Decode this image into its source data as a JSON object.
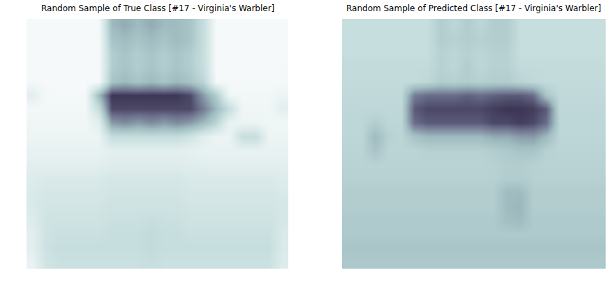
{
  "chart_data": [
    {
      "type": "heatmap",
      "title": "Random Sample of True Class [#17 - Virginia's Warbler]",
      "tick_labels": false,
      "zlim": [
        0,
        1
      ],
      "z": [
        [
          0.05,
          0.05,
          0.05,
          0.05,
          0.05,
          0.05,
          0.5,
          0.55,
          0.5,
          0.55,
          0.5,
          0.5,
          0.45,
          0.3,
          0.05,
          0.05,
          0.05,
          0.05,
          0.05,
          0.05
        ],
        [
          0.05,
          0.05,
          0.05,
          0.05,
          0.05,
          0.05,
          0.45,
          0.5,
          0.45,
          0.5,
          0.45,
          0.5,
          0.45,
          0.3,
          0.05,
          0.05,
          0.05,
          0.05,
          0.05,
          0.05
        ],
        [
          0.05,
          0.05,
          0.05,
          0.05,
          0.05,
          0.05,
          0.4,
          0.45,
          0.4,
          0.45,
          0.4,
          0.45,
          0.4,
          0.3,
          0.05,
          0.05,
          0.05,
          0.05,
          0.05,
          0.05
        ],
        [
          0.05,
          0.05,
          0.05,
          0.05,
          0.05,
          0.05,
          0.4,
          0.45,
          0.4,
          0.45,
          0.4,
          0.45,
          0.4,
          0.3,
          0.05,
          0.05,
          0.05,
          0.05,
          0.05,
          0.06
        ],
        [
          0.06,
          0.06,
          0.05,
          0.05,
          0.05,
          0.05,
          0.45,
          0.5,
          0.45,
          0.5,
          0.45,
          0.5,
          0.45,
          0.35,
          0.06,
          0.06,
          0.06,
          0.06,
          0.06,
          0.06
        ],
        [
          0.15,
          0.06,
          0.06,
          0.06,
          0.06,
          0.5,
          0.9,
          0.9,
          0.9,
          0.9,
          0.9,
          0.9,
          0.85,
          0.6,
          0.4,
          0.08,
          0.07,
          0.07,
          0.07,
          0.1
        ],
        [
          0.07,
          0.07,
          0.07,
          0.07,
          0.07,
          0.3,
          0.85,
          0.85,
          0.85,
          0.85,
          0.85,
          0.85,
          0.85,
          0.7,
          0.5,
          0.3,
          0.08,
          0.08,
          0.08,
          0.15
        ],
        [
          0.08,
          0.08,
          0.08,
          0.08,
          0.08,
          0.15,
          0.6,
          0.65,
          0.6,
          0.65,
          0.6,
          0.65,
          0.6,
          0.5,
          0.35,
          0.12,
          0.1,
          0.1,
          0.08,
          0.08
        ],
        [
          0.1,
          0.1,
          0.1,
          0.1,
          0.1,
          0.1,
          0.3,
          0.3,
          0.3,
          0.3,
          0.3,
          0.3,
          0.25,
          0.15,
          0.1,
          0.1,
          0.3,
          0.3,
          0.1,
          0.1
        ],
        [
          0.12,
          0.12,
          0.12,
          0.12,
          0.12,
          0.12,
          0.15,
          0.15,
          0.15,
          0.15,
          0.15,
          0.15,
          0.14,
          0.12,
          0.12,
          0.12,
          0.12,
          0.12,
          0.12,
          0.12
        ],
        [
          0.15,
          0.15,
          0.15,
          0.15,
          0.15,
          0.15,
          0.17,
          0.17,
          0.17,
          0.17,
          0.17,
          0.17,
          0.16,
          0.15,
          0.15,
          0.15,
          0.15,
          0.15,
          0.15,
          0.15
        ],
        [
          0.18,
          0.2,
          0.2,
          0.2,
          0.2,
          0.2,
          0.22,
          0.22,
          0.22,
          0.22,
          0.22,
          0.22,
          0.2,
          0.2,
          0.2,
          0.2,
          0.2,
          0.2,
          0.2,
          0.18
        ],
        [
          0.2,
          0.22,
          0.22,
          0.22,
          0.22,
          0.22,
          0.24,
          0.24,
          0.24,
          0.24,
          0.24,
          0.24,
          0.22,
          0.22,
          0.22,
          0.22,
          0.22,
          0.22,
          0.22,
          0.2
        ],
        [
          0.2,
          0.24,
          0.24,
          0.24,
          0.24,
          0.24,
          0.26,
          0.26,
          0.26,
          0.26,
          0.26,
          0.26,
          0.24,
          0.24,
          0.24,
          0.24,
          0.24,
          0.24,
          0.24,
          0.22
        ],
        [
          0.18,
          0.25,
          0.26,
          0.26,
          0.26,
          0.26,
          0.28,
          0.28,
          0.28,
          0.3,
          0.28,
          0.28,
          0.26,
          0.26,
          0.26,
          0.26,
          0.26,
          0.26,
          0.26,
          0.22
        ],
        [
          0.15,
          0.26,
          0.28,
          0.28,
          0.28,
          0.28,
          0.3,
          0.3,
          0.3,
          0.32,
          0.3,
          0.3,
          0.28,
          0.28,
          0.28,
          0.28,
          0.28,
          0.28,
          0.28,
          0.2
        ],
        [
          0.15,
          0.27,
          0.3,
          0.3,
          0.3,
          0.3,
          0.3,
          0.3,
          0.3,
          0.32,
          0.3,
          0.3,
          0.3,
          0.3,
          0.3,
          0.3,
          0.3,
          0.3,
          0.3,
          0.2
        ],
        [
          0.12,
          0.25,
          0.28,
          0.28,
          0.28,
          0.28,
          0.28,
          0.28,
          0.28,
          0.3,
          0.28,
          0.28,
          0.28,
          0.28,
          0.28,
          0.28,
          0.28,
          0.28,
          0.28,
          0.18
        ]
      ]
    },
    {
      "type": "heatmap",
      "title": "Random Sample of Predicted Class [#17 - Virginia's Warbler]",
      "tick_labels": false,
      "zlim": [
        0,
        1
      ],
      "z": [
        [
          0.3,
          0.3,
          0.3,
          0.3,
          0.3,
          0.3,
          0.3,
          0.4,
          0.35,
          0.4,
          0.35,
          0.4,
          0.4,
          0.3,
          0.3,
          0.3,
          0.3,
          0.3,
          0.3,
          0.3
        ],
        [
          0.3,
          0.3,
          0.3,
          0.3,
          0.3,
          0.3,
          0.3,
          0.4,
          0.38,
          0.4,
          0.38,
          0.4,
          0.4,
          0.3,
          0.3,
          0.3,
          0.3,
          0.3,
          0.3,
          0.3
        ],
        [
          0.3,
          0.3,
          0.3,
          0.3,
          0.3,
          0.3,
          0.3,
          0.38,
          0.35,
          0.38,
          0.35,
          0.38,
          0.38,
          0.3,
          0.3,
          0.3,
          0.3,
          0.3,
          0.3,
          0.3
        ],
        [
          0.32,
          0.32,
          0.32,
          0.32,
          0.32,
          0.32,
          0.32,
          0.38,
          0.35,
          0.4,
          0.35,
          0.38,
          0.38,
          0.32,
          0.32,
          0.32,
          0.32,
          0.32,
          0.32,
          0.32
        ],
        [
          0.32,
          0.32,
          0.32,
          0.32,
          0.32,
          0.32,
          0.34,
          0.4,
          0.38,
          0.4,
          0.38,
          0.4,
          0.4,
          0.36,
          0.33,
          0.32,
          0.32,
          0.32,
          0.32,
          0.32
        ],
        [
          0.33,
          0.33,
          0.33,
          0.33,
          0.33,
          0.7,
          0.75,
          0.75,
          0.75,
          0.78,
          0.75,
          0.78,
          0.8,
          0.8,
          0.75,
          0.45,
          0.33,
          0.33,
          0.33,
          0.33
        ],
        [
          0.34,
          0.34,
          0.34,
          0.34,
          0.34,
          0.8,
          0.85,
          0.85,
          0.85,
          0.85,
          0.85,
          0.88,
          0.9,
          0.9,
          0.88,
          0.8,
          0.34,
          0.34,
          0.34,
          0.34
        ],
        [
          0.35,
          0.35,
          0.4,
          0.35,
          0.35,
          0.75,
          0.8,
          0.8,
          0.8,
          0.8,
          0.8,
          0.85,
          0.85,
          0.88,
          0.85,
          0.75,
          0.35,
          0.35,
          0.35,
          0.35
        ],
        [
          0.35,
          0.35,
          0.5,
          0.38,
          0.35,
          0.45,
          0.5,
          0.5,
          0.5,
          0.5,
          0.5,
          0.55,
          0.55,
          0.6,
          0.6,
          0.5,
          0.35,
          0.35,
          0.35,
          0.35
        ],
        [
          0.36,
          0.36,
          0.45,
          0.36,
          0.36,
          0.36,
          0.38,
          0.38,
          0.38,
          0.38,
          0.38,
          0.4,
          0.42,
          0.45,
          0.45,
          0.38,
          0.36,
          0.36,
          0.36,
          0.36
        ],
        [
          0.37,
          0.37,
          0.37,
          0.37,
          0.37,
          0.37,
          0.37,
          0.37,
          0.37,
          0.37,
          0.37,
          0.38,
          0.4,
          0.4,
          0.38,
          0.37,
          0.37,
          0.37,
          0.37,
          0.37
        ],
        [
          0.38,
          0.38,
          0.38,
          0.38,
          0.38,
          0.38,
          0.38,
          0.38,
          0.38,
          0.38,
          0.38,
          0.38,
          0.4,
          0.4,
          0.38,
          0.38,
          0.38,
          0.38,
          0.38,
          0.38
        ],
        [
          0.4,
          0.4,
          0.4,
          0.4,
          0.4,
          0.4,
          0.4,
          0.4,
          0.4,
          0.4,
          0.4,
          0.4,
          0.5,
          0.5,
          0.4,
          0.4,
          0.4,
          0.4,
          0.4,
          0.4
        ],
        [
          0.4,
          0.4,
          0.4,
          0.4,
          0.4,
          0.4,
          0.4,
          0.4,
          0.4,
          0.4,
          0.4,
          0.4,
          0.5,
          0.52,
          0.4,
          0.4,
          0.4,
          0.4,
          0.4,
          0.4
        ],
        [
          0.42,
          0.42,
          0.42,
          0.42,
          0.42,
          0.42,
          0.42,
          0.42,
          0.42,
          0.42,
          0.42,
          0.42,
          0.48,
          0.5,
          0.42,
          0.42,
          0.42,
          0.42,
          0.42,
          0.42
        ],
        [
          0.42,
          0.42,
          0.42,
          0.42,
          0.42,
          0.42,
          0.42,
          0.42,
          0.42,
          0.42,
          0.42,
          0.42,
          0.42,
          0.42,
          0.42,
          0.42,
          0.42,
          0.42,
          0.42,
          0.42
        ],
        [
          0.45,
          0.45,
          0.45,
          0.45,
          0.45,
          0.45,
          0.45,
          0.45,
          0.45,
          0.45,
          0.45,
          0.45,
          0.45,
          0.45,
          0.45,
          0.45,
          0.45,
          0.45,
          0.45,
          0.45
        ],
        [
          0.43,
          0.43,
          0.43,
          0.43,
          0.43,
          0.43,
          0.43,
          0.43,
          0.43,
          0.43,
          0.43,
          0.43,
          0.43,
          0.43,
          0.43,
          0.43,
          0.43,
          0.43,
          0.43,
          0.43
        ]
      ]
    }
  ]
}
